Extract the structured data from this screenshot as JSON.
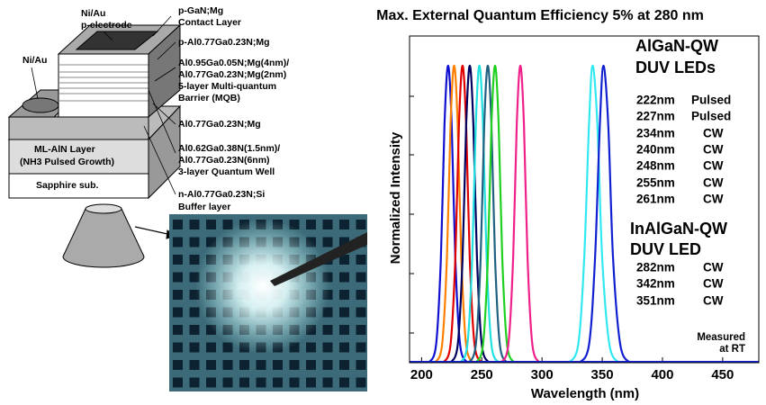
{
  "chart_data": {
    "type": "line",
    "title": "Max. External Quantum Efficiency 5% at 280 nm",
    "xlabel": "Wavelength  (nm)",
    "ylabel": "Normalized Intensity",
    "xlim": [
      190,
      480
    ],
    "xticks": [
      200,
      250,
      300,
      350,
      400,
      450
    ],
    "ylim": [
      0,
      1.1
    ],
    "groups": [
      {
        "title": [
          "AlGaN-QW",
          "DUV LEDs"
        ]
      },
      {
        "title": [
          "InAlGaN-QW",
          "DUV LED"
        ]
      }
    ],
    "note": [
      "Measured",
      "at RT"
    ],
    "series": [
      {
        "name": "222nm",
        "mode": "Pulsed",
        "color": "#1010d0",
        "x": [
          206,
          212,
          216,
          219,
          222,
          225,
          228,
          232,
          238
        ],
        "values": [
          0,
          0.06,
          0.35,
          0.8,
          1,
          0.8,
          0.35,
          0.06,
          0
        ]
      },
      {
        "name": "227nm",
        "mode": "Pulsed",
        "color": "#ff7f00",
        "x": [
          211,
          217,
          221,
          224,
          227,
          230,
          233,
          237,
          243
        ],
        "values": [
          0,
          0.06,
          0.35,
          0.8,
          1,
          0.8,
          0.35,
          0.06,
          0
        ]
      },
      {
        "name": "234nm",
        "mode": "CW",
        "color": "#e00000",
        "x": [
          218,
          224,
          228,
          231,
          234,
          237,
          240,
          244,
          250
        ],
        "values": [
          0,
          0.06,
          0.35,
          0.8,
          1,
          0.8,
          0.35,
          0.06,
          0
        ]
      },
      {
        "name": "240nm",
        "mode": "CW",
        "color": "#000060",
        "x": [
          224,
          230,
          234,
          237,
          240,
          243,
          246,
          250,
          256
        ],
        "values": [
          0,
          0.06,
          0.35,
          0.8,
          1,
          0.8,
          0.35,
          0.06,
          0
        ]
      },
      {
        "name": "248nm",
        "mode": "CW",
        "color": "#20e0e0",
        "x": [
          232,
          238,
          242,
          245,
          248,
          251,
          254,
          258,
          264
        ],
        "values": [
          0,
          0.06,
          0.35,
          0.8,
          1,
          0.8,
          0.35,
          0.06,
          0
        ]
      },
      {
        "name": "255nm",
        "mode": "CW",
        "color": "#206080",
        "x": [
          239,
          245,
          249,
          252,
          255,
          258,
          261,
          265,
          271
        ],
        "values": [
          0,
          0.06,
          0.35,
          0.8,
          1,
          0.8,
          0.35,
          0.06,
          0
        ]
      },
      {
        "name": "261nm",
        "mode": "CW",
        "color": "#20d020",
        "x": [
          245,
          251,
          255,
          258,
          261,
          264,
          267,
          271,
          277
        ],
        "values": [
          0,
          0.06,
          0.35,
          0.8,
          1,
          0.8,
          0.35,
          0.06,
          0
        ]
      },
      {
        "name": "282nm",
        "mode": "CW",
        "color": "#f0208a",
        "x": [
          266,
          272,
          276,
          279,
          282,
          285,
          288,
          292,
          298
        ],
        "values": [
          0,
          0.06,
          0.35,
          0.8,
          1,
          0.8,
          0.35,
          0.06,
          0
        ]
      },
      {
        "name": "342nm",
        "mode": "CW",
        "color": "#30e8f0",
        "x": [
          322,
          330,
          335,
          339,
          342,
          346,
          350,
          356,
          364
        ],
        "values": [
          0,
          0.06,
          0.35,
          0.8,
          1,
          0.8,
          0.35,
          0.06,
          0
        ]
      },
      {
        "name": "351nm",
        "mode": "CW",
        "color": "#1020d0",
        "x": [
          331,
          339,
          344,
          348,
          351,
          355,
          359,
          365,
          373
        ],
        "values": [
          0,
          0.06,
          0.35,
          0.8,
          1,
          0.8,
          0.35,
          0.06,
          0
        ]
      }
    ]
  },
  "diagram": {
    "labels": [
      "Ni/Au",
      "p-electrode",
      "Ni/Au",
      "p-GaN;Mg",
      "Contact Layer",
      "p-Al0.77Ga0.23N;Mg",
      "Al0.95Ga0.05N;Mg(4nm)/",
      "Al0.77Ga0.23N;Mg(2nm)",
      "5-layer  Multi-quantum",
      "Barrier (MQB)",
      "Al0.77Ga0.23N;Mg",
      "Al0.62Ga0.38N(1.5nm)/",
      "Al0.77Ga0.23N(6nm)",
      "3-layer Quantum Well",
      "n-Al0.77Ga0.23N;Si",
      "Buffer layer",
      "ML-AlN Layer",
      "(NH3 Pulsed Growth)",
      "Sapphire sub."
    ]
  }
}
